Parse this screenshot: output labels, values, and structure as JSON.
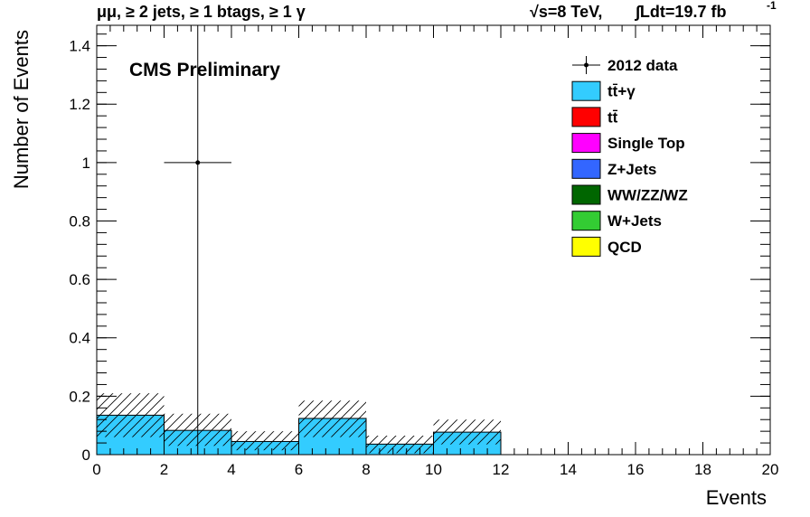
{
  "header": {
    "selection": "μμ, ≥ 2 jets, ≥ 1 btags, ≥ 1 γ",
    "energy": "√s=8 TeV,",
    "lumi": "∫Ldt=19.7 fb",
    "lumi_exp": "-1"
  },
  "label": "CMS Preliminary",
  "colors": {
    "ttgamma": "#33ccff",
    "ttbar": "#ff0000",
    "single_top": "#ff00ff",
    "zjets": "#3366ff",
    "diboson": "#006600",
    "wjets": "#33cc33",
    "qcd": "#ffff00"
  },
  "chart_data": {
    "type": "bar",
    "xlabel": "Events",
    "ylabel": "Number of Events",
    "xlim": [
      0,
      20
    ],
    "ylim": [
      0,
      1.47
    ],
    "xticks": [
      0,
      2,
      4,
      6,
      8,
      10,
      12,
      14,
      16,
      18,
      20
    ],
    "yticks": [
      0,
      0.2,
      0.4,
      0.6,
      0.8,
      1,
      1.2,
      1.4
    ],
    "ytick_labels": [
      "0",
      "0.2",
      "0.4",
      "0.6",
      "0.8",
      "1",
      "1.2",
      "1.4"
    ],
    "bin_edges": [
      0,
      2,
      4,
      6,
      8,
      10,
      12,
      14,
      16,
      18,
      20
    ],
    "mc_stack": [
      {
        "name": "tt̄+γ",
        "values": [
          0.135,
          0.083,
          0.045,
          0.124,
          0.036,
          0.077,
          0,
          0,
          0,
          0
        ]
      },
      {
        "name": "tt̄",
        "values": [
          0,
          0,
          0,
          0,
          0,
          0,
          0,
          0,
          0,
          0
        ]
      },
      {
        "name": "Single Top",
        "values": [
          0,
          0,
          0,
          0,
          0,
          0,
          0,
          0,
          0,
          0
        ]
      },
      {
        "name": "Z+Jets",
        "values": [
          0,
          0,
          0,
          0,
          0,
          0,
          0,
          0,
          0,
          0
        ]
      },
      {
        "name": "WW/ZZ/WZ",
        "values": [
          0,
          0,
          0,
          0,
          0,
          0,
          0,
          0,
          0,
          0
        ]
      },
      {
        "name": "W+Jets",
        "values": [
          0,
          0,
          0,
          0,
          0,
          0,
          0,
          0,
          0,
          0
        ]
      },
      {
        "name": "QCD",
        "values": [
          0,
          0,
          0,
          0,
          0,
          0,
          0,
          0,
          0,
          0
        ]
      }
    ],
    "uncertainty_band": {
      "low": [
        0.06,
        0.03,
        0.015,
        0.06,
        0.005,
        0.035,
        0,
        0,
        0,
        0
      ],
      "high": [
        0.21,
        0.14,
        0.08,
        0.185,
        0.065,
        0.12,
        0,
        0,
        0,
        0
      ]
    },
    "data": {
      "name": "2012 data",
      "points": [
        {
          "x": 3,
          "y": 1,
          "xerr": 1,
          "yerr_low": 1,
          "yerr_high": 1.47
        }
      ]
    },
    "legend_position": "top-right",
    "legend_entries": [
      "2012 data",
      "tt̄+γ",
      "tt̄",
      "Single Top",
      "Z+Jets",
      "WW/ZZ/WZ",
      "W+Jets",
      "QCD"
    ]
  }
}
